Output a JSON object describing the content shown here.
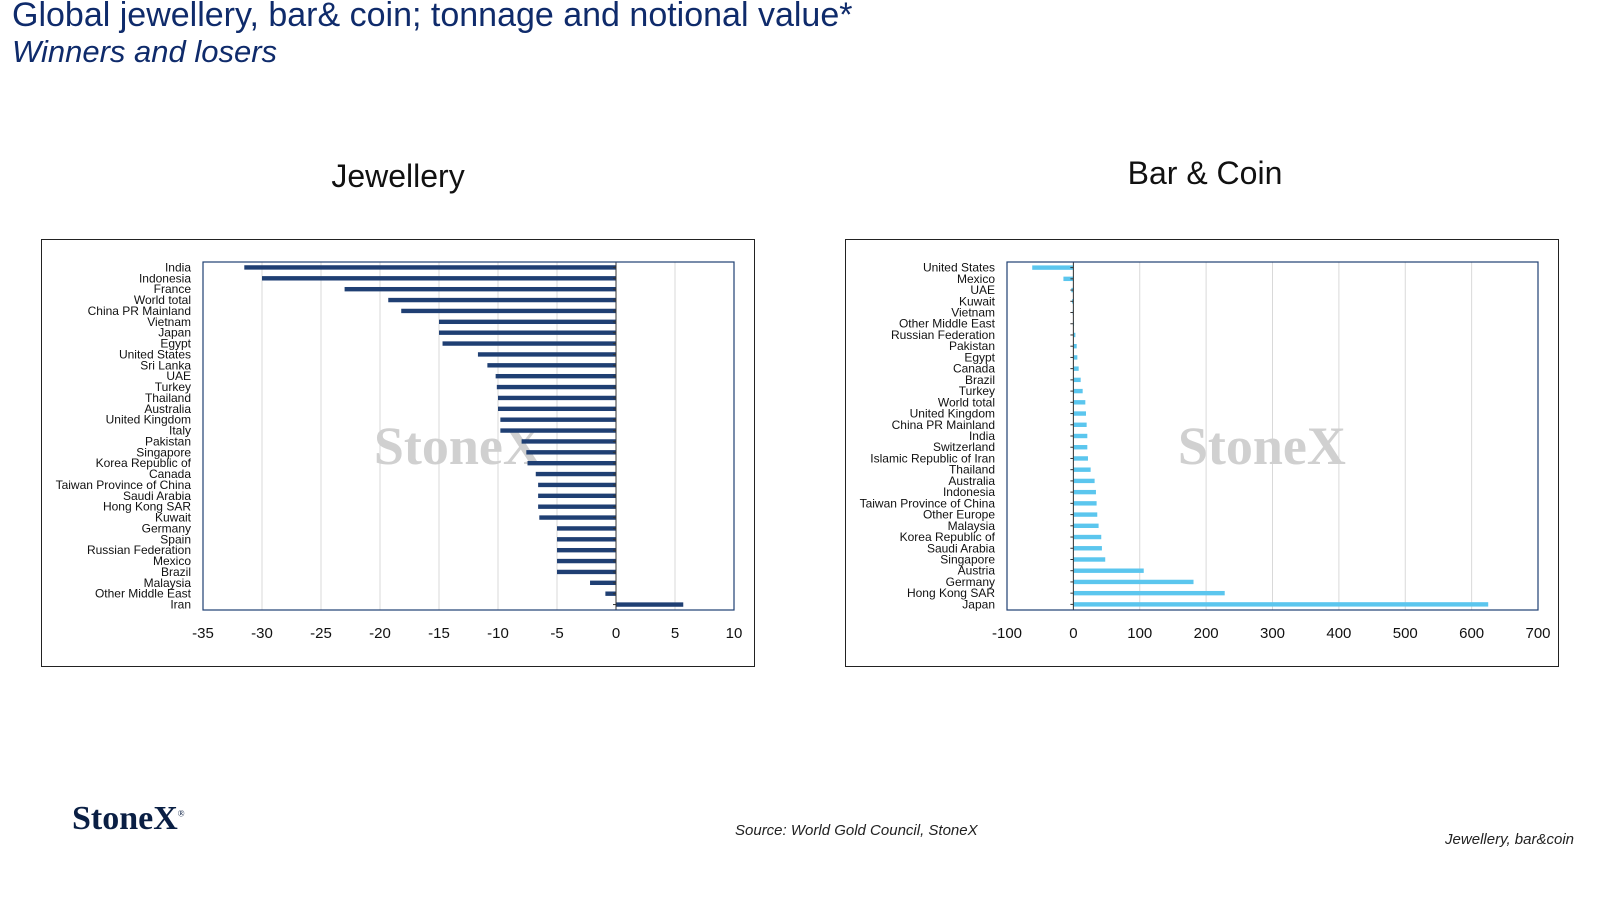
{
  "slide": {
    "title": "Global jewellery, bar& coin; tonnage and notional value*",
    "subtitle": "Winners and losers",
    "source": "Source: World Gold Council, StoneX",
    "section": "Jewellery, bar&coin",
    "logo_text": "StoneX",
    "logo_mark": "®"
  },
  "colors": {
    "title": "#0f2b6b",
    "jewellery_bar": "#1f3f73",
    "barcoin_bar": "#5bc6ee",
    "gridline": "#d9d9d9",
    "watermark": "#d0d0d0"
  },
  "chart_data": [
    {
      "type": "bar",
      "orientation": "horizontal",
      "title": "Jewellery",
      "watermark": "StoneX",
      "categories": [
        "India",
        "Indonesia",
        "France",
        "World total",
        "China PR Mainland",
        "Vietnam",
        "Japan",
        "Egypt",
        "United States",
        "Sri Lanka",
        "UAE",
        "Turkey",
        "Thailand",
        "Australia",
        "United Kingdom",
        "Italy",
        "Pakistan",
        "Singapore",
        "Korea Republic of",
        "Canada",
        "Taiwan Province of China",
        "Saudi Arabia",
        "Hong Kong SAR",
        "Kuwait",
        "Germany",
        "Spain",
        "Russian Federation",
        "Mexico",
        "Brazil",
        "Malaysia",
        "Other Middle East",
        "Iran"
      ],
      "values": [
        -31.5,
        -30,
        -23,
        -19.3,
        -18.2,
        -15,
        -15,
        -14.7,
        -11.7,
        -10.9,
        -10.2,
        -10.1,
        -10,
        -10,
        -9.8,
        -9.8,
        -8,
        -7.6,
        -7.5,
        -6.8,
        -6.6,
        -6.6,
        -6.6,
        -6.5,
        -5,
        -5,
        -5,
        -5,
        -5,
        -2.2,
        -0.9,
        5.7
      ],
      "xlim": [
        -35,
        10
      ],
      "xticks": [
        "-35",
        "-30",
        "-25",
        "-20",
        "-15",
        "-10",
        "-5",
        "0",
        "5",
        "10"
      ],
      "grid": true
    },
    {
      "type": "bar",
      "orientation": "horizontal",
      "title": "Bar & Coin",
      "watermark": "StoneX",
      "categories": [
        "United States",
        "Mexico",
        "UAE",
        "Kuwait",
        "Vietnam",
        "Other Middle East",
        "Russian Federation",
        "Pakistan",
        "Egypt",
        "Canada",
        "Brazil",
        "Turkey",
        "World total",
        "United Kingdom",
        "China PR Mainland",
        "India",
        "Switzerland",
        "Islamic Republic of Iran",
        "Thailand",
        "Australia",
        "Indonesia",
        "Taiwan Province of China",
        "Other Europe",
        "Malaysia",
        "Korea Republic of",
        "Saudi Arabia",
        "Singapore",
        "Austria",
        "Germany",
        "Hong Kong SAR",
        "Japan"
      ],
      "values": [
        -62,
        -15,
        -3,
        -2,
        -1,
        1,
        3,
        5,
        6,
        8,
        11,
        14,
        18,
        19,
        20,
        21,
        21,
        22,
        26,
        32,
        34,
        35,
        36,
        38,
        42,
        43,
        48,
        106,
        181,
        228,
        625
      ],
      "xlim": [
        -100,
        700
      ],
      "xticks": [
        "-100",
        "0",
        "100",
        "200",
        "300",
        "400",
        "500",
        "600",
        "700"
      ],
      "grid": true
    }
  ]
}
